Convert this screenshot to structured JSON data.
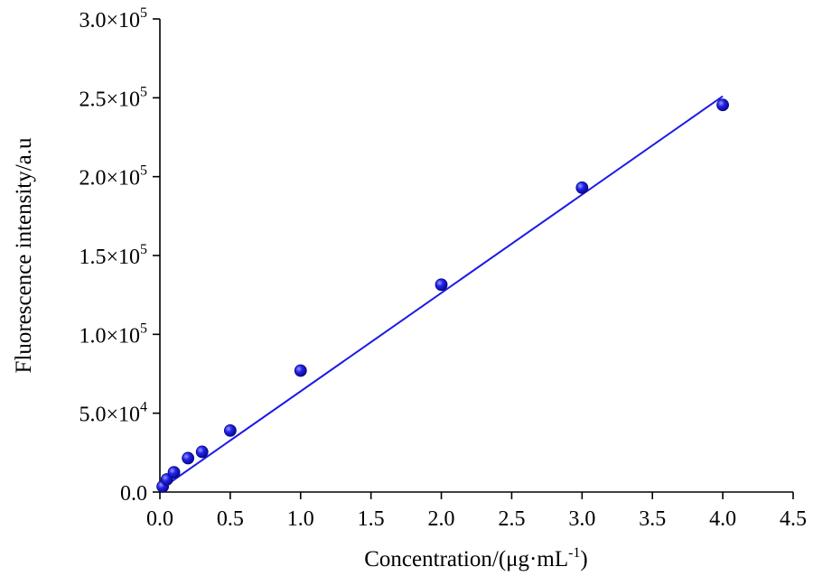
{
  "chart_data": {
    "type": "scatter",
    "title": "",
    "xlabel": "Concentration/(μg·mL",
    "xlabel_sup": "-1",
    "xlabel_suffix": ")",
    "ylabel": "Fluorescence intensity/a.u",
    "xlim": [
      0,
      4.5
    ],
    "ylim": [
      0,
      300000
    ],
    "grid": false,
    "legend": "none",
    "x_ticks": [
      0.0,
      0.5,
      1.0,
      1.5,
      2.0,
      2.5,
      3.0,
      3.5,
      4.0,
      4.5
    ],
    "x_tick_labels": [
      "0.0",
      "0.5",
      "1.0",
      "1.5",
      "2.0",
      "2.5",
      "3.0",
      "3.5",
      "4.0",
      "4.5"
    ],
    "y_ticks": [
      0,
      50000,
      100000,
      150000,
      200000,
      250000,
      300000
    ],
    "y_tick_labels": [
      {
        "mantissa": "0.0",
        "exp": ""
      },
      {
        "mantissa": "5.0×10",
        "exp": "4"
      },
      {
        "mantissa": "1.0×10",
        "exp": "5"
      },
      {
        "mantissa": "1.5×10",
        "exp": "5"
      },
      {
        "mantissa": "2.0×10",
        "exp": "5"
      },
      {
        "mantissa": "2.5×10",
        "exp": "5"
      },
      {
        "mantissa": "3.0×10",
        "exp": "5"
      }
    ],
    "series": [
      {
        "kind": "points",
        "x": [
          0.02,
          0.05,
          0.1,
          0.2,
          0.3,
          0.5,
          1.0,
          2.0,
          3.0,
          4.0
        ],
        "y": [
          3500,
          8000,
          12500,
          21500,
          25500,
          39000,
          77000,
          131500,
          193000,
          245500
        ]
      },
      {
        "kind": "fit_line",
        "x": [
          0.0,
          4.0
        ],
        "y": [
          1500,
          251000
        ]
      }
    ],
    "colors": {
      "points": "#1a1ae6",
      "line": "#1a1ae6",
      "axis": "#000000"
    }
  }
}
